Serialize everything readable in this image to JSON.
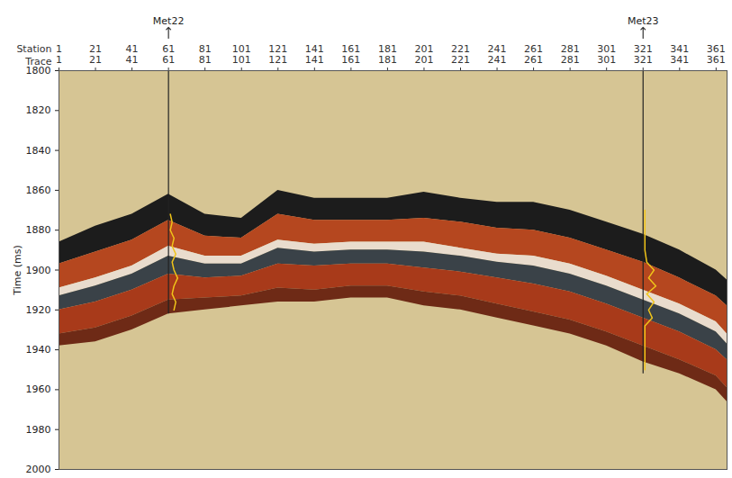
{
  "chart_data": {
    "type": "section",
    "y_label": "Time (ms)",
    "ylim": [
      1800,
      2000
    ],
    "yticks": [
      1800,
      1820,
      1840,
      1860,
      1880,
      1900,
      1920,
      1940,
      1960,
      1980,
      2000
    ],
    "xlim": [
      1,
      367
    ],
    "x_rows": [
      "Station",
      "Trace"
    ],
    "xticks": [
      1,
      21,
      41,
      61,
      81,
      101,
      121,
      141,
      161,
      181,
      201,
      221,
      241,
      261,
      281,
      301,
      321,
      341,
      361
    ],
    "x": [
      1,
      21,
      41,
      61,
      81,
      101,
      121,
      141,
      161,
      181,
      201,
      221,
      241,
      261,
      281,
      301,
      321,
      341,
      361,
      367
    ],
    "horizons": [
      [
        1886,
        1878,
        1872,
        1862,
        1872,
        1874,
        1860,
        1864,
        1864,
        1864,
        1861,
        1864,
        1866,
        1866,
        1870,
        1876,
        1882,
        1890,
        1900,
        1905
      ],
      [
        1897,
        1891,
        1885,
        1875,
        1883,
        1884,
        1872,
        1875,
        1875,
        1875,
        1874,
        1876,
        1879,
        1880,
        1884,
        1890,
        1896,
        1904,
        1913,
        1918
      ],
      [
        1909,
        1904,
        1898,
        1888,
        1893,
        1893,
        1885,
        1887,
        1886,
        1886,
        1886,
        1889,
        1892,
        1893,
        1897,
        1903,
        1910,
        1917,
        1926,
        1932
      ],
      [
        1913,
        1908,
        1902,
        1893,
        1897,
        1897,
        1889,
        1891,
        1890,
        1890,
        1891,
        1893,
        1896,
        1898,
        1902,
        1908,
        1915,
        1922,
        1931,
        1937
      ],
      [
        1920,
        1916,
        1910,
        1902,
        1904,
        1903,
        1897,
        1898,
        1897,
        1897,
        1899,
        1901,
        1904,
        1907,
        1911,
        1917,
        1924,
        1931,
        1940,
        1945
      ],
      [
        1932,
        1929,
        1923,
        1915,
        1914,
        1913,
        1909,
        1910,
        1908,
        1908,
        1911,
        1913,
        1917,
        1921,
        1925,
        1931,
        1938,
        1945,
        1953,
        1959
      ],
      [
        1938,
        1936,
        1930,
        1922,
        1920,
        1918,
        1916,
        1916,
        1914,
        1914,
        1918,
        1920,
        1924,
        1928,
        1932,
        1938,
        1946,
        1952,
        1960,
        1966
      ]
    ],
    "colors": [
      "#1c1c1c",
      "#b5471f",
      "#e9dccd",
      "#3a4248",
      "#a83a1a",
      "#6e2a16"
    ],
    "wells": [
      {
        "name": "Met22",
        "trace": 61,
        "bottom": 1922,
        "color": "#f0c419",
        "log_times": [
          1872,
          1876,
          1880,
          1884,
          1888,
          1892,
          1896,
          1900,
          1904,
          1908,
          1912,
          1916,
          1920
        ],
        "log_traces": [
          62,
          63,
          62,
          64,
          63,
          65,
          63,
          64,
          66,
          64,
          63,
          65,
          64
        ]
      },
      {
        "name": "Met23",
        "trace": 321,
        "bottom": 1952,
        "color": "#f0c419",
        "log_times": [
          1870,
          1880,
          1890,
          1896,
          1900,
          1904,
          1908,
          1912,
          1916,
          1920,
          1924,
          1928,
          1932,
          1940,
          1950
        ],
        "log_traces": [
          322,
          322,
          322,
          323,
          327,
          324,
          328,
          323,
          327,
          324,
          326,
          322,
          322,
          322,
          322
        ]
      }
    ]
  }
}
